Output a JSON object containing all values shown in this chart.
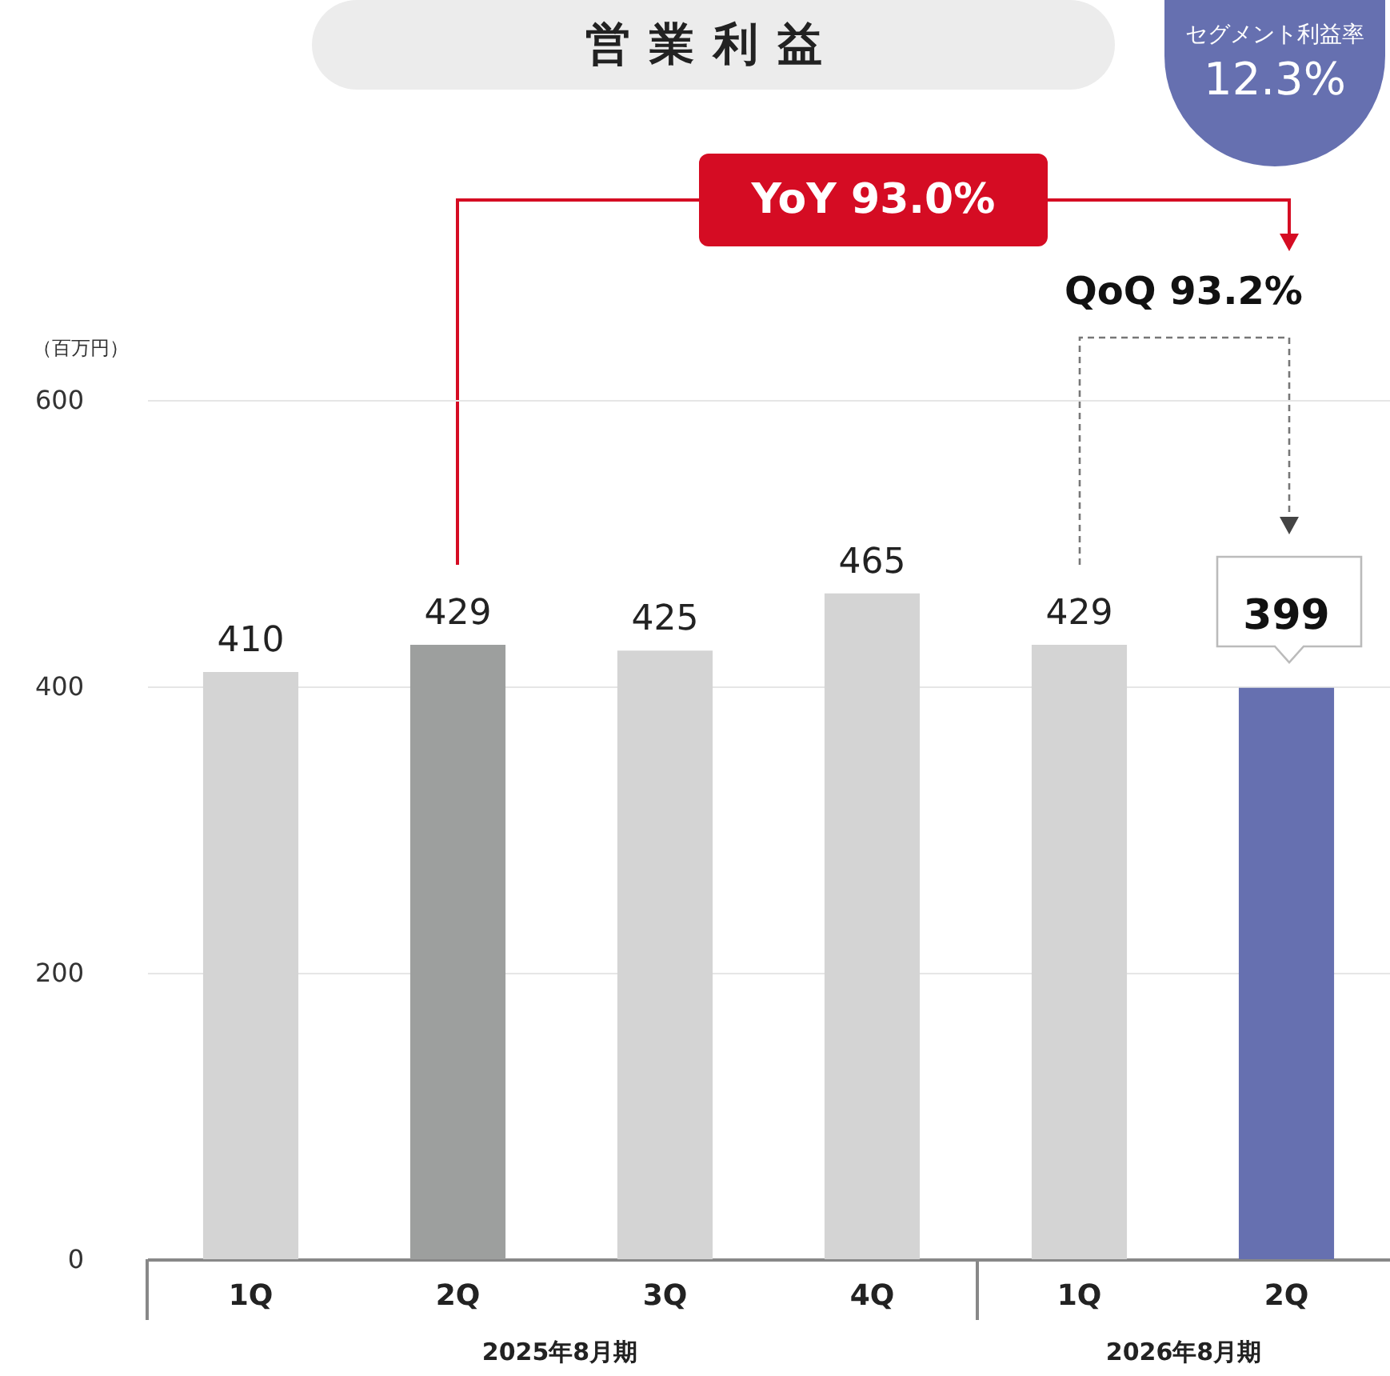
{
  "chart_data": {
    "type": "bar",
    "title": "営業利益",
    "ylabel": "（百万円）",
    "categories": [
      "1Q",
      "2Q",
      "3Q",
      "4Q",
      "1Q",
      "2Q"
    ],
    "values": [
      410,
      429,
      425,
      465,
      429,
      399
    ],
    "colors": [
      "#d4d4d4",
      "#9d9f9e",
      "#d4d4d4",
      "#d4d4d4",
      "#d4d4d4",
      "#6670b0"
    ],
    "ylim": [
      0,
      600
    ],
    "yticks": [
      0,
      200,
      400,
      600
    ],
    "grid": "y",
    "data_labels": true,
    "annotations": [
      "YoY 93.0%",
      "QoQ 93.2%",
      "セグメント利益率 12.3%",
      "2025年8月期",
      "2026年8月期"
    ]
  }
}
